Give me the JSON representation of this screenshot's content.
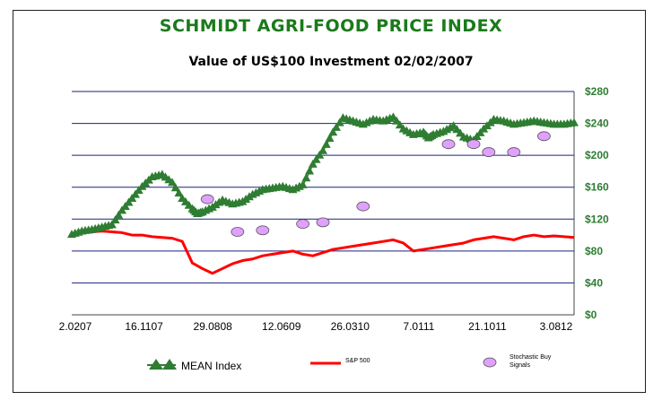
{
  "chart_data": {
    "type": "line",
    "title": "SCHMIDT AGRI-FOOD PRICE INDEX",
    "subtitle": "Value of US$100 Investment 02/02/2007",
    "x_tick_labels": [
      "2.0207",
      "16.1107",
      "29.0808",
      "12.0609",
      "26.0310",
      "7.0111",
      "21.1011",
      "3.0812"
    ],
    "y_tick_labels": [
      "$0",
      "$40",
      "$80",
      "$120",
      "$160",
      "$200",
      "$240",
      "$280"
    ],
    "ylim": [
      0,
      280
    ],
    "x_range": [
      0,
      100
    ],
    "grid": true,
    "legend_placement": "bottom",
    "series": [
      {
        "name": "MEAN Index",
        "color": "#2e7d32",
        "marker": "triangle",
        "x": [
          0,
          2,
          4,
          6,
          8,
          10,
          12,
          14,
          16,
          18,
          20,
          22,
          24,
          25,
          26,
          28,
          30,
          32,
          34,
          36,
          38,
          40,
          42,
          44,
          46,
          48,
          50,
          52,
          54,
          56,
          58,
          60,
          62,
          64,
          66,
          68,
          70,
          71,
          72,
          74,
          76,
          78,
          80,
          82,
          84,
          86,
          88,
          90,
          92,
          94,
          96,
          98,
          100
        ],
        "values": [
          100,
          104,
          106,
          109,
          112,
          130,
          145,
          160,
          172,
          175,
          165,
          145,
          132,
          126,
          128,
          134,
          143,
          138,
          141,
          150,
          156,
          158,
          160,
          156,
          162,
          188,
          205,
          228,
          246,
          242,
          238,
          244,
          242,
          247,
          232,
          225,
          228,
          221,
          225,
          229,
          236,
          222,
          218,
          232,
          244,
          242,
          238,
          240,
          242,
          240,
          238,
          238,
          240
        ]
      },
      {
        "name": "S&P 500",
        "color": "#ff0000",
        "x": [
          0,
          2,
          4,
          6,
          8,
          10,
          12,
          14,
          16,
          18,
          20,
          22,
          24,
          26,
          28,
          30,
          32,
          34,
          36,
          38,
          40,
          42,
          44,
          46,
          48,
          50,
          52,
          54,
          56,
          58,
          60,
          62,
          64,
          66,
          68,
          70,
          72,
          74,
          76,
          78,
          80,
          82,
          84,
          86,
          88,
          90,
          92,
          94,
          96,
          98,
          100
        ],
        "values": [
          100,
          103,
          104,
          105,
          104,
          103,
          100,
          100,
          98,
          97,
          96,
          92,
          65,
          58,
          52,
          58,
          64,
          68,
          70,
          74,
          76,
          78,
          80,
          76,
          74,
          78,
          82,
          84,
          86,
          88,
          90,
          92,
          94,
          90,
          80,
          82,
          84,
          86,
          88,
          90,
          94,
          96,
          98,
          96,
          94,
          98,
          100,
          98,
          99,
          98,
          97
        ]
      },
      {
        "name": "Stochastic Buy Signals",
        "color": "#e0a0ff",
        "marker": "ellipse",
        "x": [
          27,
          33,
          38,
          46,
          50,
          58,
          75,
          80,
          83,
          88,
          94
        ],
        "values": [
          145,
          104,
          106,
          114,
          116,
          136,
          214,
          214,
          204,
          204,
          224
        ]
      }
    ]
  }
}
